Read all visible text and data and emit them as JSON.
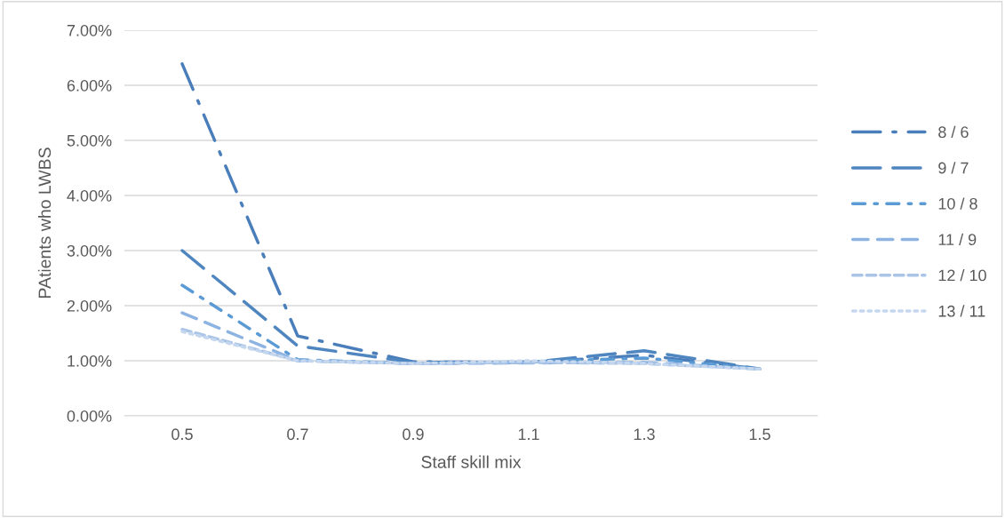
{
  "chart_data": {
    "type": "line",
    "xlabel": "Staff skill mix",
    "ylabel": "PAtients who LWBS",
    "categories": [
      "0.5",
      "0.7",
      "0.9",
      "1.1",
      "1.3",
      "1.5"
    ],
    "series": [
      {
        "name": "8 / 6",
        "color": "#4a7ebb",
        "line_style": "longdashdot",
        "values": [
          6.39,
          1.45,
          0.98,
          0.97,
          1.1,
          0.85
        ]
      },
      {
        "name": "9 / 7",
        "color": "#4f86c0",
        "line_style": "longdash",
        "values": [
          3.0,
          1.27,
          0.97,
          0.97,
          1.18,
          0.85
        ]
      },
      {
        "name": "10 / 8",
        "color": "#5b9bd5",
        "line_style": "dashdot",
        "values": [
          2.37,
          1.02,
          0.95,
          0.98,
          1.05,
          0.85
        ]
      },
      {
        "name": "11 / 9",
        "color": "#8db3e2",
        "line_style": "dashed",
        "values": [
          1.87,
          1.0,
          0.95,
          0.96,
          0.97,
          0.85
        ]
      },
      {
        "name": "12 / 10",
        "color": "#a9c4e6",
        "line_style": "shortdash",
        "values": [
          1.57,
          1.0,
          0.95,
          0.97,
          0.95,
          0.85
        ]
      },
      {
        "name": "13 / 11",
        "color": "#c5d7ee",
        "line_style": "dotted",
        "values": [
          1.53,
          1.0,
          0.95,
          1.0,
          0.95,
          0.85
        ]
      }
    ],
    "ylim": [
      0,
      7
    ],
    "yticks": [
      {
        "value": 0,
        "label": "0.00%"
      },
      {
        "value": 1,
        "label": "1.00%"
      },
      {
        "value": 2,
        "label": "2.00%"
      },
      {
        "value": 3,
        "label": "3.00%"
      },
      {
        "value": 4,
        "label": "4.00%"
      },
      {
        "value": 5,
        "label": "5.00%"
      },
      {
        "value": 6,
        "label": "6.00%"
      },
      {
        "value": 7,
        "label": "7.00%"
      }
    ],
    "grid": "y",
    "legend": "right",
    "marker": "none"
  }
}
